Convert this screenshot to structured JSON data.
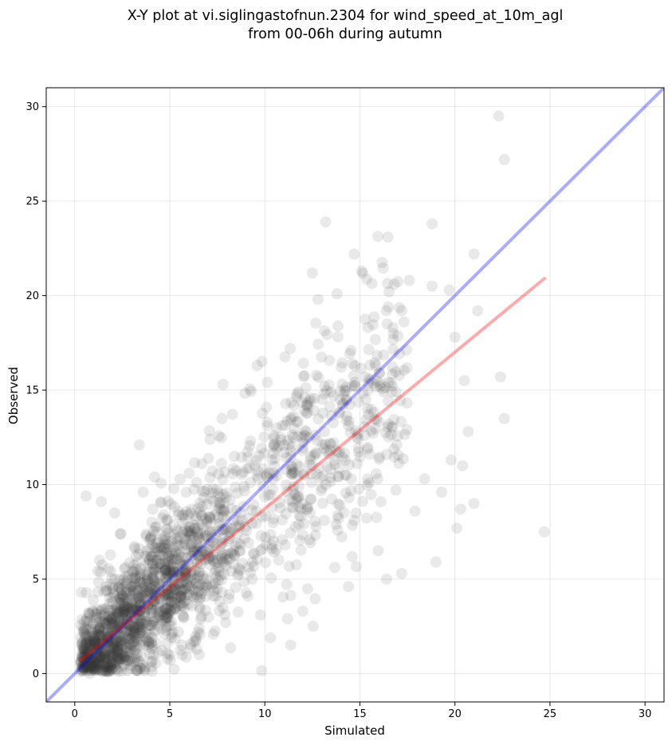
{
  "chart_data": {
    "type": "scatter",
    "title_lines": [
      "X-Y plot at vi.siglingastofnun.2304 for wind_speed_at_10m_agl",
      "from 00-06h during autumn"
    ],
    "xlabel": "Simulated",
    "ylabel": "Observed",
    "xlim": [
      -1.5,
      31
    ],
    "ylim": [
      -1.5,
      31
    ],
    "xticks": [
      0,
      5,
      10,
      15,
      20,
      25,
      30
    ],
    "yticks": [
      0,
      5,
      10,
      15,
      20,
      25,
      30
    ],
    "grid": true,
    "colors": {
      "points": "#333333",
      "one_to_one_line": "#0000ff",
      "fit_line": "#ff0000",
      "grid": "#d9d9d9"
    },
    "one_to_one_line": {
      "x": [
        -1.5,
        31
      ],
      "y": [
        -1.5,
        31
      ]
    },
    "fit_line": {
      "x": [
        0.3,
        24.7
      ],
      "y": [
        0.7,
        20.9
      ]
    },
    "outlier_points": [
      {
        "x": 22.3,
        "y": 29.5
      },
      {
        "x": 22.6,
        "y": 27.2
      },
      {
        "x": 13.2,
        "y": 23.9
      },
      {
        "x": 18.8,
        "y": 23.8
      },
      {
        "x": 21.0,
        "y": 22.2
      },
      {
        "x": 14.7,
        "y": 22.2
      },
      {
        "x": 15.1,
        "y": 21.3
      },
      {
        "x": 12.5,
        "y": 21.2
      },
      {
        "x": 17.6,
        "y": 20.8
      },
      {
        "x": 18.8,
        "y": 20.5
      },
      {
        "x": 19.7,
        "y": 20.3
      },
      {
        "x": 21.2,
        "y": 19.2
      },
      {
        "x": 16.8,
        "y": 20.6
      },
      {
        "x": 20.0,
        "y": 17.8
      },
      {
        "x": 20.5,
        "y": 15.5
      },
      {
        "x": 22.4,
        "y": 15.7
      },
      {
        "x": 22.6,
        "y": 13.5
      },
      {
        "x": 20.7,
        "y": 12.8
      },
      {
        "x": 19.8,
        "y": 11.3
      },
      {
        "x": 20.4,
        "y": 11.0
      },
      {
        "x": 21.0,
        "y": 9.0
      },
      {
        "x": 20.3,
        "y": 8.7
      },
      {
        "x": 24.7,
        "y": 7.5
      },
      {
        "x": 20.1,
        "y": 7.7
      },
      {
        "x": 19.0,
        "y": 5.9
      },
      {
        "x": 17.2,
        "y": 5.3
      },
      {
        "x": 16.4,
        "y": 5.0
      },
      {
        "x": 0.6,
        "y": 9.4
      },
      {
        "x": 1.4,
        "y": 9.1
      },
      {
        "x": 2.1,
        "y": 8.5
      },
      {
        "x": 3.4,
        "y": 12.1
      },
      {
        "x": 3.6,
        "y": 9.6
      },
      {
        "x": 2.4,
        "y": 7.4
      },
      {
        "x": 7.8,
        "y": 15.3
      },
      {
        "x": 9.6,
        "y": 16.3
      },
      {
        "x": 4.2,
        "y": 10.4
      },
      {
        "x": 1.3,
        "y": 6.0
      },
      {
        "x": 0.8,
        "y": 0.0
      },
      {
        "x": 14.4,
        "y": 4.6
      },
      {
        "x": 12.0,
        "y": 3.3
      },
      {
        "x": 10.3,
        "y": 1.9
      },
      {
        "x": 11.2,
        "y": 2.9
      },
      {
        "x": 19.3,
        "y": 9.6
      },
      {
        "x": 18.4,
        "y": 10.3
      },
      {
        "x": 17.9,
        "y": 8.6
      },
      {
        "x": 16.5,
        "y": 19.4
      },
      {
        "x": 12.8,
        "y": 19.8
      },
      {
        "x": 13.8,
        "y": 20.1
      }
    ],
    "dense_cloud": {
      "point_count": 1900,
      "x_range": [
        0.3,
        18.8
      ],
      "slope": 0.9,
      "intercept": 0.3,
      "spread": 2.3
    }
  }
}
